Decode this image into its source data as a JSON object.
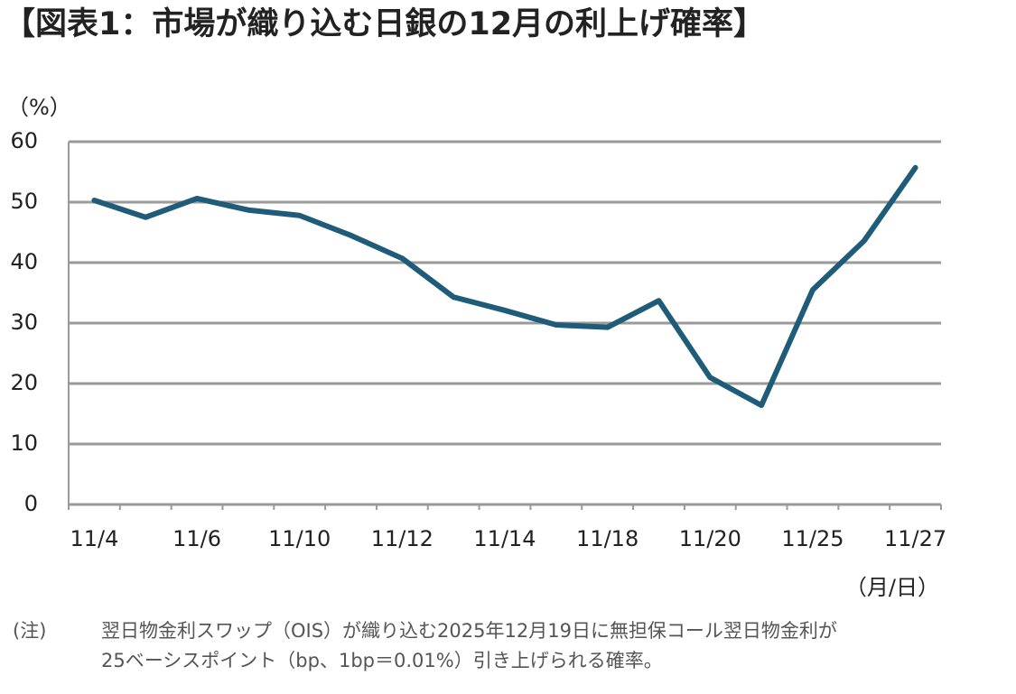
{
  "chart_data": {
    "type": "line",
    "title": "【図表1：市場が織り込む日銀の12月の利上げ確率】",
    "y_label": "（%）",
    "x_label": "（月/日）",
    "categories": [
      "11/4",
      null,
      "11/6",
      null,
      "11/10",
      null,
      "11/12",
      null,
      "11/14",
      null,
      "11/18",
      null,
      "11/20",
      null,
      "11/25",
      null,
      "11/27"
    ],
    "values": [
      50.3,
      47.5,
      50.6,
      48.7,
      47.8,
      44.5,
      40.7,
      34.3,
      32.1,
      29.7,
      29.3,
      33.7,
      21.0,
      16.4,
      35.5,
      43.6,
      55.7
    ],
    "color": "#1f5c7a",
    "ylim": [
      0,
      60
    ],
    "yticks": [
      0,
      10,
      20,
      30,
      40,
      50,
      60
    ],
    "grid": true,
    "note_label": "(注)",
    "note_lines": [
      "翌日物金利スワップ（OIS）が織り込む2025年12月19日に無担保コール翌日物金利が",
      "25ベーシスポイント（bp、1bp＝0.01%）引き上げられる確率。"
    ]
  }
}
